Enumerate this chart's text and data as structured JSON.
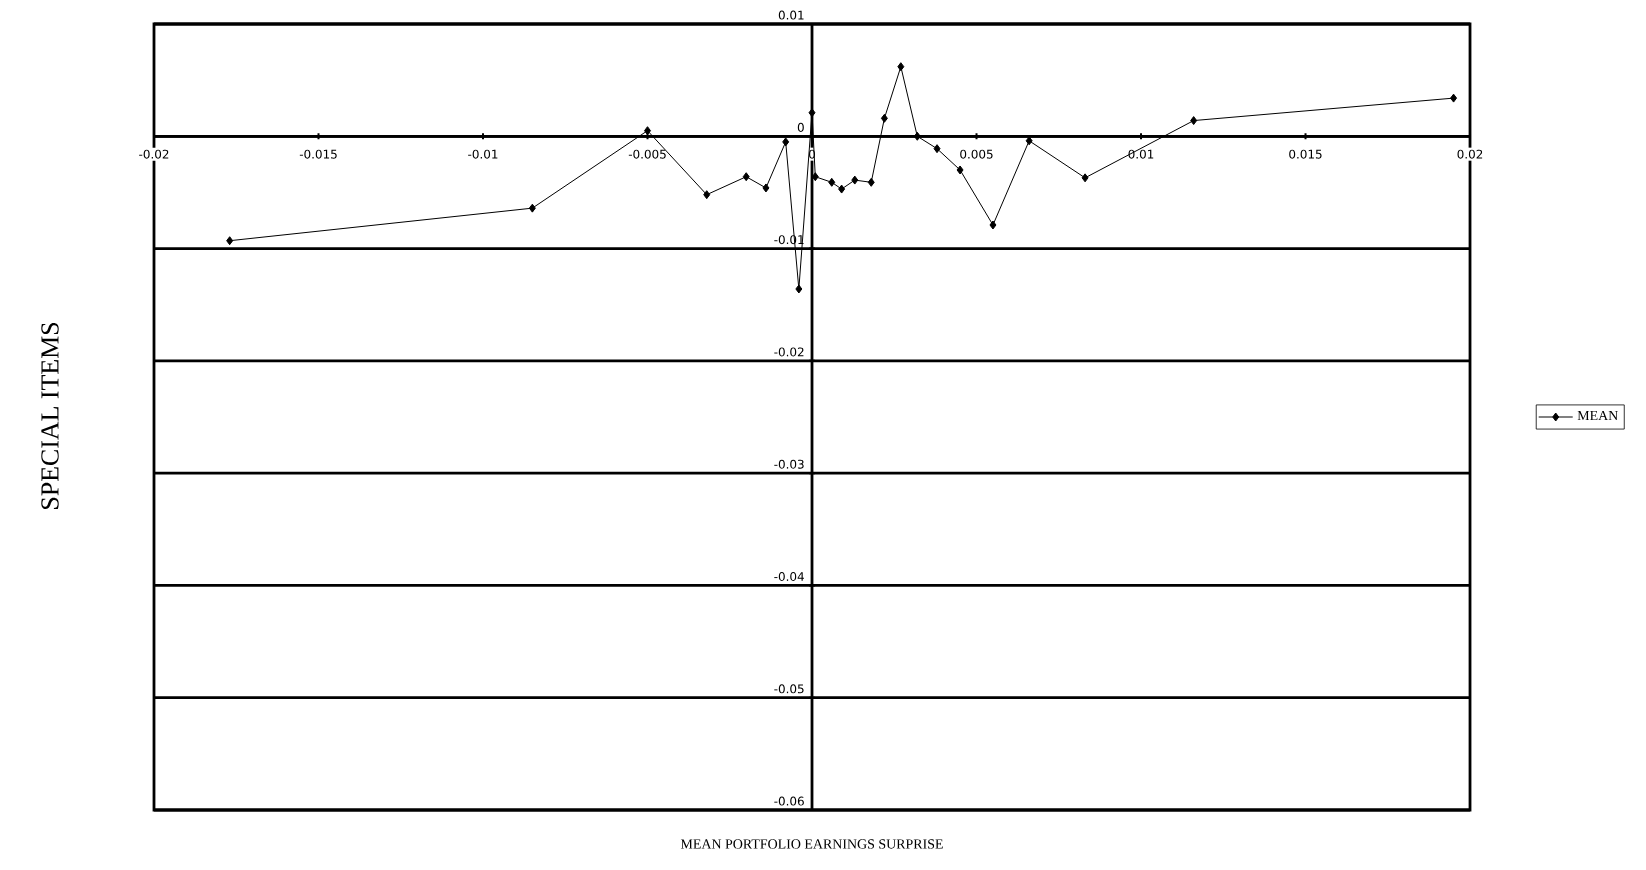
{
  "chart_data": {
    "type": "line",
    "xlabel": "MEAN PORTFOLIO EARNINGS SURPRISE",
    "ylabel": "SPECIAL ITEMS",
    "x": [
      -0.0177,
      -0.0085,
      -0.005,
      -0.0032,
      -0.002,
      -0.0014,
      -0.0008,
      -0.0004,
      0.0,
      0.0001,
      0.0006,
      0.0009,
      0.0013,
      0.0018,
      0.0022,
      0.0027,
      0.0032,
      0.0038,
      0.0045,
      0.0055,
      0.0066,
      0.0083,
      0.0116,
      0.0195
    ],
    "series": [
      {
        "name": "MEAN",
        "color": "#000000",
        "values": [
          -0.0093,
          -0.0064,
          0.0005,
          -0.0052,
          -0.0036,
          -0.0046,
          -0.0005,
          -0.0136,
          0.0021,
          -0.0036,
          -0.0041,
          -0.0047,
          -0.0039,
          -0.0041,
          0.0016,
          0.0062,
          0.0,
          -0.0011,
          -0.003,
          -0.0079,
          -0.0004,
          -0.0037,
          0.0014,
          0.0034
        ]
      }
    ],
    "xlim": [
      -0.02,
      0.02
    ],
    "xticks": [
      -0.02,
      -0.015,
      -0.01,
      -0.005,
      0,
      0.005,
      0.01,
      0.015,
      0.02
    ],
    "ylim": [
      -0.06,
      0.01
    ],
    "yticks": [
      -0.06,
      -0.05,
      -0.04,
      -0.03,
      -0.02,
      -0.01,
      0,
      0.01
    ],
    "grid": "y",
    "legend": "right",
    "marker": "diamond",
    "line_style": "solid"
  }
}
